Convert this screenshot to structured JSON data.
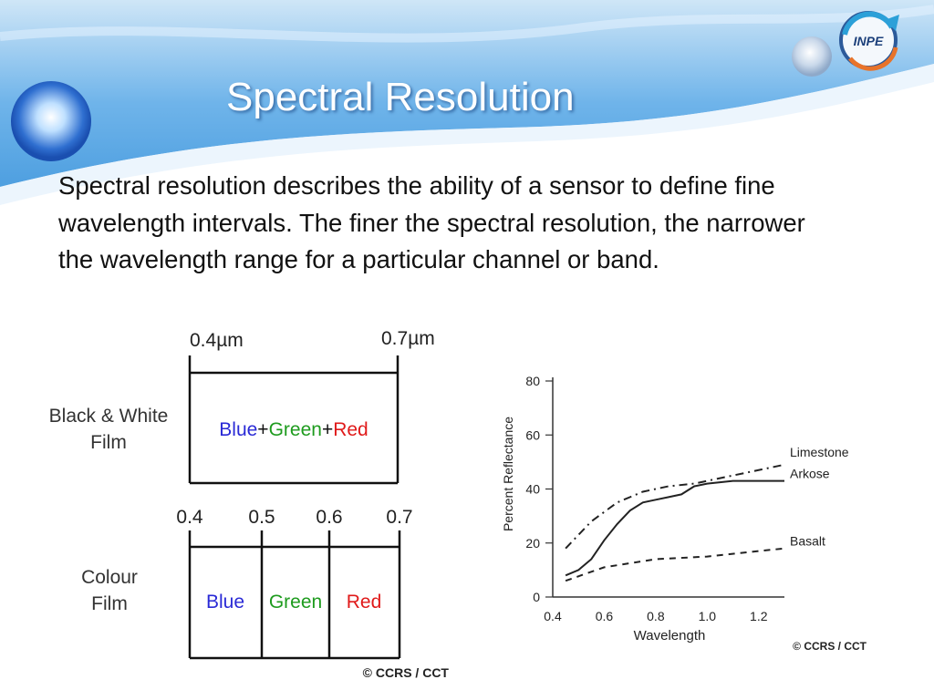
{
  "slide": {
    "title": "Spectral Resolution",
    "body": "Spectral resolution describes the ability of a sensor to define fine wavelength intervals. The finer the spectral resolution, the narrower the wavelength range for a particular channel or band.",
    "logo_text": "INPE",
    "accent_color": "#5aa8e6"
  },
  "film_diagram": {
    "bw": {
      "row_label": [
        "Black & White",
        "Film"
      ],
      "start_label": "0.4µm",
      "end_label": "0.7µm",
      "content": [
        {
          "text": "Blue",
          "color": "#2a2ad6"
        },
        {
          "text": "+",
          "color": "#111111"
        },
        {
          "text": "Green",
          "color": "#1e9b1e"
        },
        {
          "text": "+",
          "color": "#111111"
        },
        {
          "text": "Red",
          "color": "#e01a1a"
        }
      ]
    },
    "colour": {
      "row_label": [
        "Colour",
        "Film"
      ],
      "ticks": [
        "0.4",
        "0.5",
        "0.6",
        "0.7"
      ],
      "bands": [
        {
          "text": "Blue",
          "color": "#2a2ad6"
        },
        {
          "text": "Green",
          "color": "#1e9b1e"
        },
        {
          "text": "Red",
          "color": "#e01a1a"
        }
      ]
    },
    "credit": "© CCRS / CCT"
  },
  "chart_data": {
    "type": "line",
    "xlabel": "Wavelength",
    "ylabel": "Percent Reflectance",
    "xlim": [
      0.4,
      1.3
    ],
    "ylim": [
      0,
      80
    ],
    "x_ticks": [
      "0.4",
      "0.6",
      "0.8",
      "1.0",
      "1.2"
    ],
    "y_ticks": [
      "0",
      "20",
      "40",
      "60",
      "80"
    ],
    "series": [
      {
        "name": "Limestone",
        "style": "dash-dot",
        "x": [
          0.45,
          0.55,
          0.65,
          0.75,
          0.85,
          0.95,
          1.05,
          1.15,
          1.25,
          1.3
        ],
        "y": [
          18,
          28,
          35,
          39,
          41,
          42,
          44,
          46,
          48,
          49
        ]
      },
      {
        "name": "Arkose",
        "style": "solid",
        "x": [
          0.45,
          0.5,
          0.55,
          0.6,
          0.65,
          0.7,
          0.75,
          0.8,
          0.85,
          0.9,
          0.95,
          1.0,
          1.1,
          1.2,
          1.3
        ],
        "y": [
          8,
          10,
          14,
          21,
          27,
          32,
          35,
          36,
          37,
          38,
          41,
          42,
          43,
          43,
          43
        ]
      },
      {
        "name": "Basalt",
        "style": "dashed",
        "x": [
          0.45,
          0.6,
          0.8,
          1.0,
          1.2,
          1.3
        ],
        "y": [
          6,
          11,
          14,
          15,
          17,
          18
        ]
      }
    ],
    "credit": "© CCRS / CCT"
  }
}
